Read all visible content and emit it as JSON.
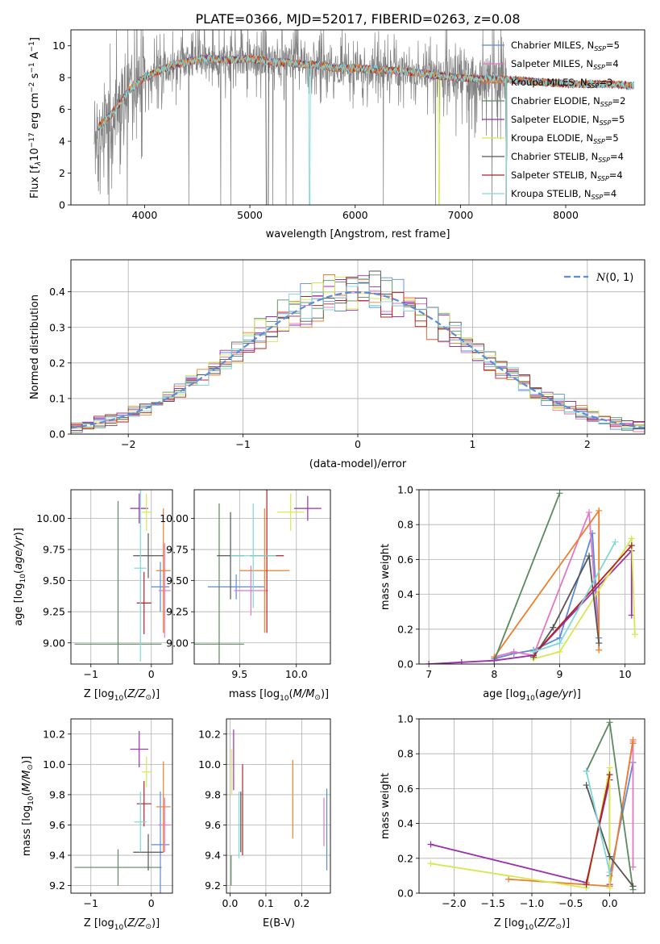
{
  "figure": {
    "title": "PLATE=0366, MJD=52017, FIBERID=0263, z=0.08"
  },
  "palette": {
    "chabrier_miles": "#5b8bd9",
    "salpeter_miles": "#e377c2",
    "kroupa_miles": "#ec7f2c",
    "chabrier_elodie": "#5a8a5e",
    "salpeter_elodie": "#9b2fae",
    "kroupa_elodie": "#d6e84f",
    "chabrier_stelib": "#555555",
    "salpeter_stelib": "#b22222",
    "kroupa_stelib": "#7fd8d8",
    "data": "#7f7f7f",
    "normal": "#5b8bd9"
  },
  "chart_data": [
    {
      "id": "spectrum",
      "type": "line",
      "title": "PLATE=0366, MJD=52017, FIBERID=0263, z=0.08",
      "xlabel": "wavelength [Angstrom, rest frame]",
      "ylabel_parts": [
        "Flux [f",
        "λ",
        "10",
        "−17",
        " erg cm",
        "−2",
        " s",
        "−1",
        " A",
        "−1",
        "]"
      ],
      "xlim": [
        3300,
        8750
      ],
      "ylim": [
        0,
        11
      ],
      "xticks": [
        4000,
        5000,
        6000,
        7000,
        8000
      ],
      "yticks": [
        0,
        2,
        4,
        6,
        8,
        10
      ],
      "grid": false,
      "legend_position": "top-right",
      "legend": [
        {
          "label": "Chabrier MILES, N",
          "sub": "SSP",
          "value": "=5",
          "color_key": "chabrier_miles"
        },
        {
          "label": "Salpeter MILES, N",
          "sub": "SSP",
          "value": "=4",
          "color_key": "salpeter_miles"
        },
        {
          "label": "Kroupa MILES, N",
          "sub": "SSP",
          "value": "=3",
          "color_key": "kroupa_miles"
        },
        {
          "label": "Chabrier ELODIE, N",
          "sub": "SSP",
          "value": "=2",
          "color_key": "chabrier_elodie"
        },
        {
          "label": "Salpeter ELODIE, N",
          "sub": "SSP",
          "value": "=5",
          "color_key": "salpeter_elodie"
        },
        {
          "label": "Kroupa ELODIE, N",
          "sub": "SSP",
          "value": "=5",
          "color_key": "kroupa_elodie"
        },
        {
          "label": "Chabrier STELIB, N",
          "sub": "SSP",
          "value": "=4",
          "color_key": "chabrier_stelib"
        },
        {
          "label": "Salpeter STELIB, N",
          "sub": "SSP",
          "value": "=4",
          "color_key": "salpeter_stelib"
        },
        {
          "label": "Kroupa STELIB, N",
          "sub": "SSP",
          "value": "=4",
          "color_key": "kroupa_stelib"
        }
      ],
      "continuum": {
        "x": [
          3550,
          3700,
          3850,
          4000,
          4200,
          4400,
          4600,
          4800,
          5000,
          5200,
          5400,
          5600,
          5800,
          6000,
          6200,
          6400,
          6600,
          6800,
          7000,
          7200,
          7400,
          7600,
          7800,
          8000,
          8200,
          8400,
          8600
        ],
        "y": [
          4.8,
          5.8,
          7.2,
          8.0,
          8.6,
          9.0,
          9.2,
          9.1,
          9.2,
          9.0,
          8.9,
          8.8,
          8.6,
          8.6,
          8.5,
          8.4,
          8.3,
          8.1,
          8.0,
          7.9,
          7.9,
          7.8,
          7.7,
          7.6,
          7.6,
          7.6,
          7.5
        ]
      }
    },
    {
      "id": "residuals",
      "type": "histogram",
      "xlabel": "(data-model)/error",
      "ylabel": "Normed distribution",
      "xlim": [
        -2.5,
        2.5
      ],
      "ylim": [
        0,
        0.49
      ],
      "xticks": [
        -2,
        -1,
        0,
        1,
        2
      ],
      "yticks": [
        0.0,
        0.1,
        0.2,
        0.3,
        0.4
      ],
      "grid": true,
      "legend": [
        {
          "label": "N(0, 1)",
          "style": "dashed",
          "color_key": "normal"
        }
      ],
      "legend_position": "top-right",
      "bin_width": 0.1,
      "bin_start": -2.5,
      "gaussian": {
        "mean": 0,
        "sigma": 1
      }
    },
    {
      "id": "age_vs_Z",
      "type": "errorbar",
      "xlabel": "Z [log10(Z/Z⊙)]",
      "ylabel": "age [log10(age/yr)]",
      "xlim": [
        -1.33,
        0.35
      ],
      "ylim": [
        8.83,
        10.23
      ],
      "xticks": [
        -1,
        0
      ],
      "yticks": [
        9.0,
        9.25,
        9.5,
        9.75,
        10.0
      ],
      "grid": true,
      "points": [
        {
          "c": "chabrier_miles",
          "x": 0.15,
          "xe": 0.15,
          "y": 9.45,
          "ye": 0.2
        },
        {
          "c": "salpeter_miles",
          "x": 0.22,
          "xe": 0.1,
          "y": 9.42,
          "ye": 0.38
        },
        {
          "c": "kroupa_miles",
          "x": 0.2,
          "xe": 0.12,
          "y": 9.58,
          "ye": 0.5
        },
        {
          "c": "chabrier_elodie",
          "x": -0.55,
          "xe": 0.72,
          "y": 8.99,
          "ye": 1.15
        },
        {
          "c": "salpeter_elodie",
          "x": -0.2,
          "xe": 0.15,
          "y": 10.08,
          "ye": 0.12
        },
        {
          "c": "kroupa_elodie",
          "x": -0.08,
          "xe": 0.08,
          "y": 10.05,
          "ye": 0.15
        },
        {
          "c": "chabrier_stelib",
          "x": -0.05,
          "xe": 0.25,
          "y": 9.7,
          "ye": 0.18
        },
        {
          "c": "salpeter_stelib",
          "x": -0.12,
          "xe": 0.12,
          "y": 9.32,
          "ye": 0.25
        },
        {
          "c": "kroupa_stelib",
          "x": -0.18,
          "xe": 0.1,
          "y": 9.6,
          "ye": 0.75
        }
      ]
    },
    {
      "id": "age_vs_mass",
      "type": "errorbar",
      "xlabel": "mass [log10(M/M⊙)]",
      "ylabel": "",
      "xlim": [
        9.1,
        10.3
      ],
      "ylim": [
        8.83,
        10.23
      ],
      "xticks": [
        9.5,
        10.0
      ],
      "yticks": [
        9.0,
        9.25,
        9.5,
        9.75,
        10.0
      ],
      "grid": true,
      "points": [
        {
          "c": "chabrier_miles",
          "x": 9.47,
          "xe": 0.25,
          "y": 9.45,
          "ye": 0.1
        },
        {
          "c": "salpeter_miles",
          "x": 9.6,
          "xe": 0.15,
          "y": 9.42,
          "ye": 0.2
        },
        {
          "c": "kroupa_miles",
          "x": 9.72,
          "xe": 0.22,
          "y": 9.58,
          "ye": 0.5
        },
        {
          "c": "chabrier_elodie",
          "x": 9.32,
          "xe": 0.22,
          "y": 8.99,
          "ye": 1.13
        },
        {
          "c": "salpeter_elodie",
          "x": 10.1,
          "xe": 0.12,
          "y": 10.08,
          "ye": 0.1
        },
        {
          "c": "kroupa_elodie",
          "x": 9.95,
          "xe": 0.12,
          "y": 10.05,
          "ye": 0.15
        },
        {
          "c": "chabrier_stelib",
          "x": 9.42,
          "xe": 0.12,
          "y": 9.7,
          "ye": 0.35
        },
        {
          "c": "salpeter_stelib",
          "x": 9.74,
          "xe": 0.15,
          "y": 9.7,
          "ye": 0.62
        },
        {
          "c": "kroupa_stelib",
          "x": 9.62,
          "xe": 0.2,
          "y": 9.7,
          "ye": 0.42
        }
      ]
    },
    {
      "id": "weight_vs_age",
      "type": "line",
      "xlabel": "age [log10(age/yr)]",
      "ylabel": "mass weight",
      "xlim": [
        6.85,
        10.3
      ],
      "ylim": [
        0,
        1
      ],
      "xticks": [
        7,
        8,
        9,
        10
      ],
      "yticks": [
        0.0,
        0.2,
        0.4,
        0.6,
        0.8,
        1.0
      ],
      "grid": true,
      "series": [
        {
          "c": "chabrier_miles",
          "x": [
            8.0,
            8.3,
            8.6,
            9.0,
            9.5,
            9.6
          ],
          "y": [
            0.03,
            0.06,
            0.08,
            0.15,
            0.75,
            0.15
          ]
        },
        {
          "c": "salpeter_miles",
          "x": [
            8.0,
            8.3,
            8.6,
            9.45,
            9.6
          ],
          "y": [
            0.04,
            0.07,
            0.05,
            0.87,
            0.12
          ]
        },
        {
          "c": "kroupa_miles",
          "x": [
            8.0,
            9.6,
            9.6
          ],
          "y": [
            0.04,
            0.88,
            0.08
          ]
        },
        {
          "c": "chabrier_elodie",
          "x": [
            8.0,
            9.0
          ],
          "y": [
            0.02,
            0.98
          ]
        },
        {
          "c": "salpeter_elodie",
          "x": [
            7.0,
            7.5,
            8.0,
            8.6,
            10.1,
            10.1
          ],
          "y": [
            0.0,
            0.01,
            0.02,
            0.05,
            0.65,
            0.28
          ]
        },
        {
          "c": "kroupa_elodie",
          "x": [
            8.6,
            9.0,
            10.1,
            10.15
          ],
          "y": [
            0.03,
            0.07,
            0.72,
            0.17
          ]
        },
        {
          "c": "chabrier_stelib",
          "x": [
            8.6,
            8.9,
            9.45,
            9.6
          ],
          "y": [
            0.04,
            0.21,
            0.62,
            0.12
          ]
        },
        {
          "c": "salpeter_stelib",
          "x": [
            8.6,
            10.1
          ],
          "y": [
            0.05,
            0.68
          ]
        },
        {
          "c": "kroupa_stelib",
          "x": [
            8.6,
            9.0,
            9.85
          ],
          "y": [
            0.07,
            0.12,
            0.7
          ]
        }
      ]
    },
    {
      "id": "mass_vs_Z",
      "type": "errorbar",
      "xlabel": "Z [log10(Z/Z⊙)]",
      "ylabel": "mass [log10(M/M⊙)]",
      "xlim": [
        -1.33,
        0.35
      ],
      "ylim": [
        9.15,
        10.3
      ],
      "xticks": [
        -1,
        0
      ],
      "yticks": [
        9.2,
        9.4,
        9.6,
        9.8,
        10.0,
        10.2
      ],
      "grid": true,
      "points": [
        {
          "c": "chabrier_miles",
          "x": 0.15,
          "xe": 0.15,
          "y": 9.47,
          "ye": 0.35
        },
        {
          "c": "salpeter_miles",
          "x": 0.22,
          "xe": 0.1,
          "y": 9.6,
          "ye": 0.18
        },
        {
          "c": "kroupa_miles",
          "x": 0.2,
          "xe": 0.12,
          "y": 9.72,
          "ye": 0.3
        },
        {
          "c": "chabrier_elodie",
          "x": -0.55,
          "xe": 0.72,
          "y": 9.32,
          "ye": 0.12
        },
        {
          "c": "salpeter_elodie",
          "x": -0.2,
          "xe": 0.15,
          "y": 10.1,
          "ye": 0.12
        },
        {
          "c": "kroupa_elodie",
          "x": -0.08,
          "xe": 0.08,
          "y": 9.95,
          "ye": 0.1
        },
        {
          "c": "chabrier_stelib",
          "x": -0.05,
          "xe": 0.25,
          "y": 9.42,
          "ye": 0.12
        },
        {
          "c": "salpeter_stelib",
          "x": -0.12,
          "xe": 0.12,
          "y": 9.74,
          "ye": 0.15
        },
        {
          "c": "kroupa_stelib",
          "x": -0.18,
          "xe": 0.1,
          "y": 9.62,
          "ye": 0.2
        }
      ]
    },
    {
      "id": "mass_vs_ebv",
      "type": "errorbar",
      "xlabel": "E(B-V)",
      "ylabel": "",
      "xlim": [
        -0.01,
        0.28
      ],
      "ylim": [
        9.15,
        10.3
      ],
      "xticks": [
        0.0,
        0.1,
        0.2
      ],
      "yticks": [
        9.2,
        9.4,
        9.6,
        9.8,
        10.0,
        10.2
      ],
      "grid": true,
      "points": [
        {
          "c": "chabrier_miles",
          "x": 0.27,
          "xe": 0,
          "y": 9.57,
          "ye": 0.27
        },
        {
          "c": "salpeter_miles",
          "x": 0.262,
          "xe": 0,
          "y": 9.62,
          "ye": 0.16
        },
        {
          "c": "kroupa_miles",
          "x": 0.175,
          "xe": 0,
          "y": 9.77,
          "ye": 0.26
        },
        {
          "c": "chabrier_elodie",
          "x": 0.003,
          "xe": 0,
          "y": 9.3,
          "ye": 0.1
        },
        {
          "c": "salpeter_elodie",
          "x": 0.01,
          "xe": 0,
          "y": 10.03,
          "ye": 0.2
        },
        {
          "c": "kroupa_elodie",
          "x": 0.005,
          "xe": 0,
          "y": 9.95,
          "ye": 0.15
        },
        {
          "c": "chabrier_stelib",
          "x": 0.03,
          "xe": 0,
          "y": 9.62,
          "ye": 0.2
        },
        {
          "c": "salpeter_stelib",
          "x": 0.035,
          "xe": 0,
          "y": 9.7,
          "ye": 0.3
        },
        {
          "c": "kroupa_stelib",
          "x": 0.025,
          "xe": 0,
          "y": 9.6,
          "ye": 0.22
        }
      ]
    },
    {
      "id": "weight_vs_Z",
      "type": "line",
      "xlabel": "Z [log10(Z/Z⊙)]",
      "ylabel": "mass weight",
      "xlim": [
        -2.45,
        0.45
      ],
      "ylim": [
        0,
        1
      ],
      "xticks": [
        -2.0,
        -1.5,
        -1.0,
        -0.5,
        0.0
      ],
      "yticks": [
        0.0,
        0.2,
        0.4,
        0.6,
        0.8,
        1.0
      ],
      "grid": true,
      "series": [
        {
          "c": "chabrier_miles",
          "x": [
            0.0,
            0.3
          ],
          "y": [
            0.1,
            0.75
          ]
        },
        {
          "c": "salpeter_miles",
          "x": [
            0.0,
            0.3,
            0.3
          ],
          "y": [
            0.05,
            0.87,
            0.15
          ]
        },
        {
          "c": "kroupa_miles",
          "x": [
            -1.3,
            0.0,
            0.3,
            0.3
          ],
          "y": [
            0.08,
            0.04,
            0.88,
            0.86
          ]
        },
        {
          "c": "chabrier_elodie",
          "x": [
            -0.3,
            0.0,
            0.3
          ],
          "y": [
            0.7,
            0.98,
            0.02
          ]
        },
        {
          "c": "salpeter_elodie",
          "x": [
            -2.3,
            -0.3,
            0.0,
            0.0
          ],
          "y": [
            0.28,
            0.06,
            0.65,
            0.05
          ]
        },
        {
          "c": "kroupa_elodie",
          "x": [
            -2.3,
            -0.3,
            0.0,
            0.0
          ],
          "y": [
            0.17,
            0.03,
            0.72,
            0.03
          ]
        },
        {
          "c": "chabrier_stelib",
          "x": [
            -0.3,
            0.0,
            0.3
          ],
          "y": [
            0.62,
            0.21,
            0.04
          ]
        },
        {
          "c": "salpeter_stelib",
          "x": [
            -0.3,
            0.0
          ],
          "y": [
            0.05,
            0.68
          ]
        },
        {
          "c": "kroupa_stelib",
          "x": [
            -0.3,
            0.0
          ],
          "y": [
            0.7,
            0.12
          ]
        }
      ]
    }
  ]
}
